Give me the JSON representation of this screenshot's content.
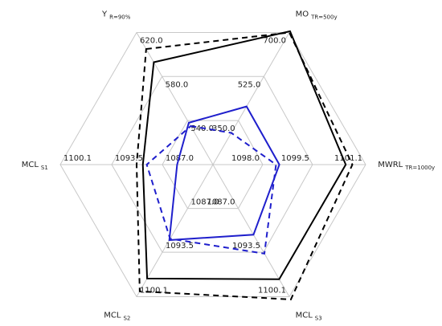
{
  "chart_data": {
    "type": "radar",
    "axes": [
      {
        "label": "Y",
        "sub": "R=90%",
        "lim": [
          500,
          620
        ],
        "ticks": [
          {
            "value": 540,
            "label": "540.0"
          },
          {
            "value": 580,
            "label": "580.0"
          },
          {
            "value": 620,
            "label": "620.0"
          }
        ]
      },
      {
        "label": "MO",
        "sub": "TR=500y",
        "lim": [
          175,
          700
        ],
        "ticks": [
          {
            "value": 350,
            "label": "350.0"
          },
          {
            "value": 525,
            "label": "525.0"
          },
          {
            "value": 700,
            "label": "700.0"
          }
        ]
      },
      {
        "label": "MWRL",
        "sub": "TR=1000y",
        "lim": [
          1096.5,
          1101.1
        ],
        "ticks": [
          {
            "value": 1098,
            "label": "1098.0"
          },
          1099.5,
          1101.1
        ]
      },
      {
        "label": "MCL",
        "sub": "S3",
        "lim": [
          1080.5,
          1100.1
        ],
        "ticks": [
          {
            "value": 1087,
            "label": "1087.0"
          },
          1093.5,
          1100.1
        ]
      },
      {
        "label": "MCL",
        "sub": "S2",
        "lim": [
          1080.5,
          1100.1
        ],
        "ticks": [
          {
            "value": 1087,
            "label": "1087.0"
          },
          1093.5,
          1100.1
        ]
      },
      {
        "label": "MCL",
        "sub": "S1",
        "lim": [
          1080.5,
          1100.1
        ],
        "ticks": [
          {
            "value": 1087,
            "label": "1087.0"
          },
          1093.5,
          1100.1
        ]
      }
    ],
    "series": [
      {
        "color": "#000000",
        "dashed": false,
        "values": [
          593,
          705,
          1100.5,
          1097.5,
          1097.4,
          1089.5
        ]
      },
      {
        "color": "#000000",
        "dashed": true,
        "values": [
          605,
          700,
          1100.7,
          1100.5,
          1099.3,
          1090.3
        ]
      },
      {
        "color": "#1f1fcc",
        "dashed": false,
        "values": [
          538,
          406,
          1098.5,
          1090.9,
          1091.7,
          1085.1
        ]
      },
      {
        "color": "#1f1fcc",
        "dashed": true,
        "values": [
          535,
          301,
          1098.4,
          1093.7,
          1091.5,
          1089.0
        ]
      }
    ]
  }
}
